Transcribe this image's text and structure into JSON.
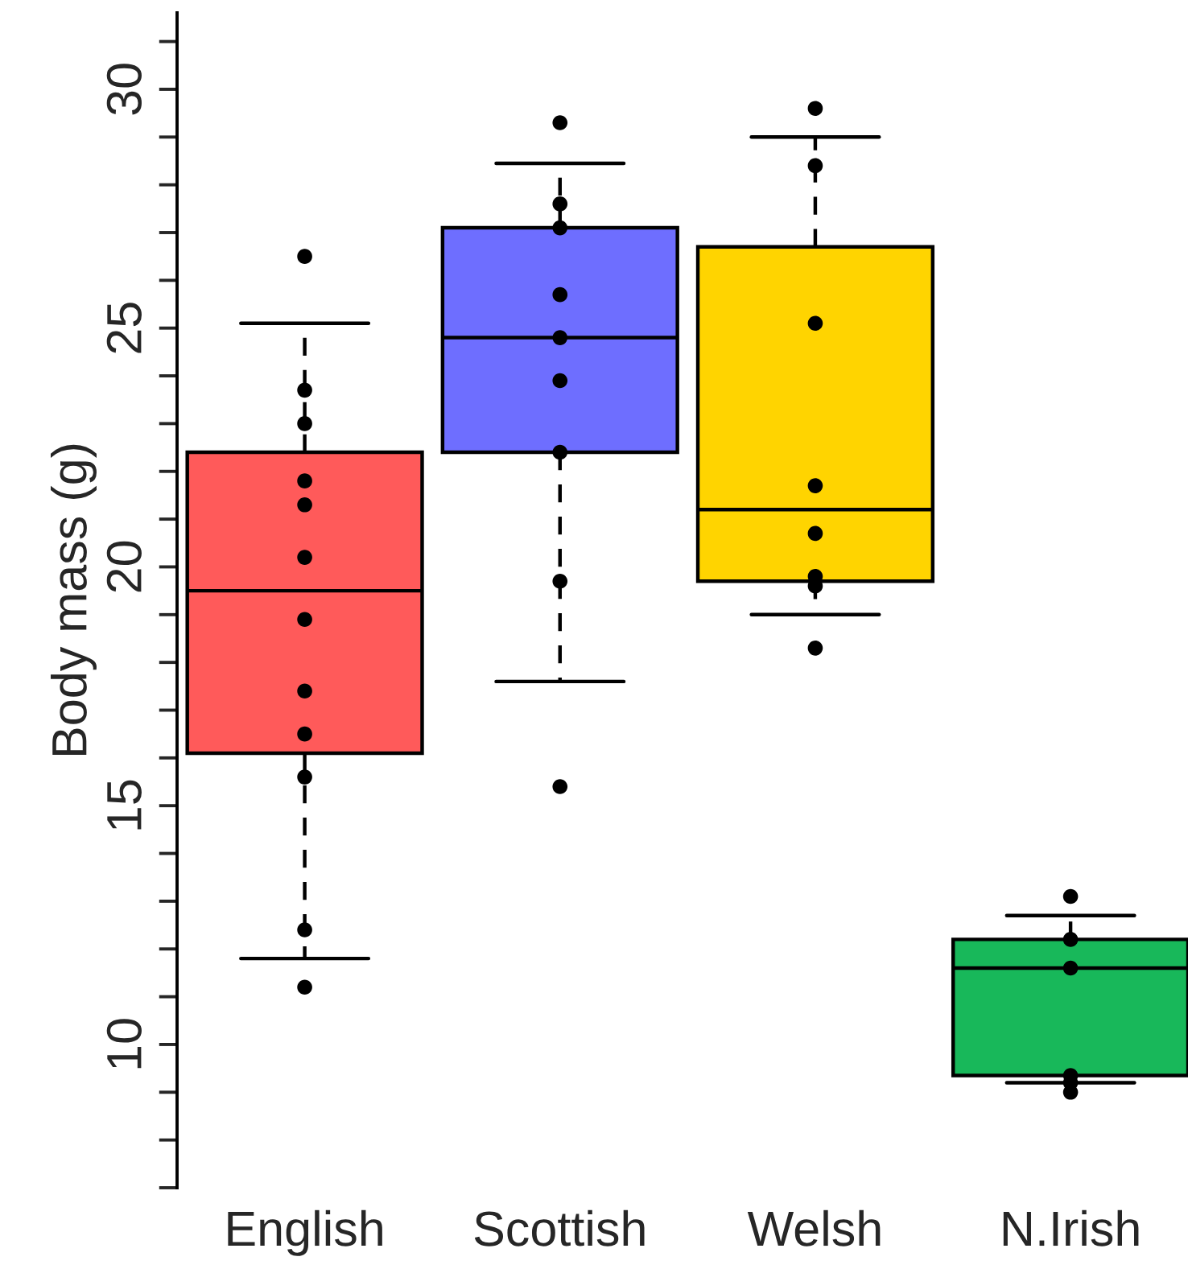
{
  "chart_data": {
    "type": "box",
    "ylabel": "Body mass (g)",
    "categories": [
      "English",
      "Scottish",
      "Welsh",
      "N.Irish"
    ],
    "colors": [
      "#ff5a5a",
      "#6e6eff",
      "#ffd400",
      "#18b85a"
    ],
    "boxes": [
      {
        "low": 11.8,
        "q1": 16.1,
        "median": 19.5,
        "q3": 22.4,
        "high": 25.1
      },
      {
        "low": 17.6,
        "q1": 22.4,
        "median": 24.8,
        "q3": 27.1,
        "high": 28.45
      },
      {
        "low": 19.0,
        "q1": 19.7,
        "median": 21.2,
        "q3": 26.7,
        "high": 29.0
      },
      {
        "low": 9.2,
        "q1": 9.35,
        "median": 11.6,
        "q3": 12.2,
        "high": 12.7
      }
    ],
    "series": [
      {
        "type": "scatter",
        "color": "#000000",
        "x": [
          "English",
          "English",
          "English",
          "English",
          "English",
          "English",
          "English",
          "English",
          "English",
          "English",
          "English",
          "English",
          "Scottish",
          "Scottish",
          "Scottish",
          "Scottish",
          "Scottish",
          "Scottish",
          "Scottish",
          "Scottish",
          "Scottish",
          "Welsh",
          "Welsh",
          "Welsh",
          "Welsh",
          "Welsh",
          "Welsh",
          "Welsh",
          "Welsh",
          "N.Irish",
          "N.Irish",
          "N.Irish",
          "N.Irish",
          "N.Irish",
          "N.Irish"
        ],
        "values": [
          26.5,
          23.7,
          23.0,
          21.8,
          21.3,
          20.2,
          18.9,
          17.4,
          16.5,
          15.6,
          12.4,
          11.2,
          29.3,
          27.6,
          27.1,
          25.7,
          24.8,
          23.9,
          22.4,
          19.7,
          15.4,
          29.6,
          28.4,
          25.1,
          21.7,
          20.7,
          19.8,
          19.6,
          18.3,
          13.1,
          12.2,
          11.6,
          9.35,
          9.2,
          9.0
        ]
      }
    ],
    "ylim": [
      7,
      31.6
    ],
    "yticks": [
      {
        "value": 7,
        "label": null
      },
      {
        "value": 8,
        "label": null
      },
      {
        "value": 9,
        "label": null
      },
      10,
      {
        "value": 11,
        "label": null
      },
      {
        "value": 12,
        "label": null
      },
      {
        "value": 13,
        "label": null
      },
      {
        "value": 14,
        "label": null
      },
      15,
      {
        "value": 16,
        "label": null
      },
      {
        "value": 17,
        "label": null
      },
      {
        "value": 18,
        "label": null
      },
      {
        "value": 19,
        "label": null
      },
      20,
      {
        "value": 21,
        "label": null
      },
      {
        "value": 22,
        "label": null
      },
      {
        "value": 23,
        "label": null
      },
      {
        "value": 24,
        "label": null
      },
      25,
      {
        "value": 26,
        "label": null
      },
      {
        "value": 27,
        "label": null
      },
      {
        "value": 28,
        "label": null
      },
      {
        "value": 29,
        "label": null
      },
      30,
      {
        "value": 31,
        "label": null
      }
    ],
    "line_style": "dashed",
    "marker": "circle",
    "grid": false,
    "legend": false
  }
}
